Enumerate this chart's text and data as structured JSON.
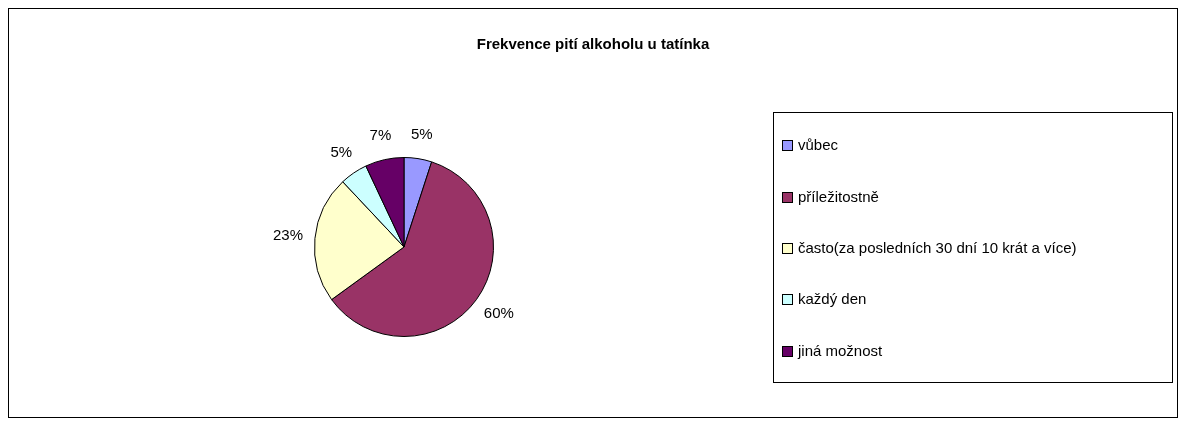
{
  "chart_data": {
    "type": "pie",
    "title": "Frekvence pití alkoholu u tatínka",
    "categories": [
      "vůbec",
      "příležitostně",
      "často(za posledních 30 dní 10 krát a více)",
      "každý den",
      "jiná možnost"
    ],
    "values": [
      5,
      60,
      23,
      5,
      7
    ],
    "colors": [
      "#9999ff",
      "#993366",
      "#ffffcc",
      "#ccffff",
      "#660066"
    ],
    "value_labels": [
      "5%",
      "60%",
      "23%",
      "5%",
      "7%"
    ],
    "legend": "right"
  }
}
